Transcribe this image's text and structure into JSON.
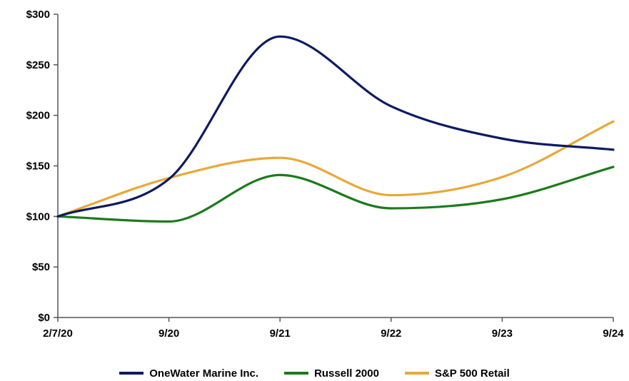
{
  "chart_data": {
    "type": "line",
    "title": "",
    "xlabel": "",
    "ylabel": "",
    "categories": [
      "2/7/20",
      "9/20",
      "9/21",
      "9/22",
      "9/23",
      "9/24"
    ],
    "y_ticks": [
      "$0",
      "$50",
      "$100",
      "$150",
      "$200",
      "$250",
      "$300"
    ],
    "ylim": [
      0,
      300
    ],
    "grid": false,
    "legend_position": "bottom",
    "series": [
      {
        "name": "OneWater Marine Inc.",
        "color": "#0d1a63",
        "values": [
          100,
          137,
          278,
          209,
          177,
          166
        ]
      },
      {
        "name": "Russell 2000",
        "color": "#1c7a1c",
        "values": [
          100,
          95,
          141,
          108,
          117,
          149
        ]
      },
      {
        "name": "S&P 500 Retail",
        "color": "#e8a838",
        "values": [
          100,
          138,
          158,
          121,
          139,
          194
        ]
      }
    ]
  }
}
